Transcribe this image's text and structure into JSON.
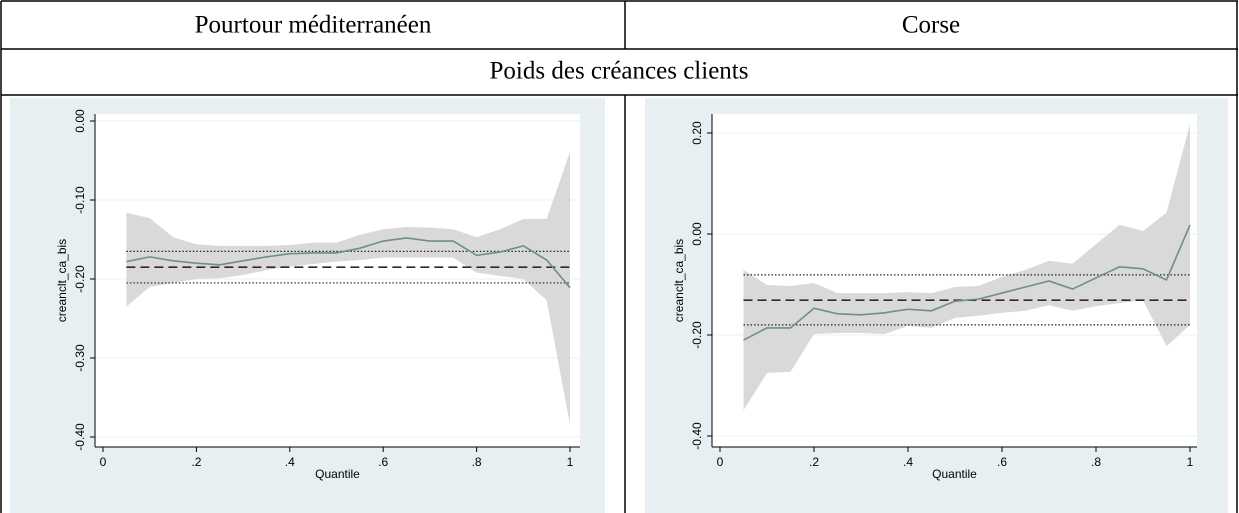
{
  "table": {
    "rows": [
      [
        "Pourtour méditerranéen",
        "Corse"
      ],
      [
        "Poids des créances clients"
      ]
    ]
  },
  "charts": [
    {
      "type": "line",
      "xlabel": "Quantile",
      "ylabel": "creanclt_ca_bis",
      "x": [
        0.05,
        0.1,
        0.15,
        0.2,
        0.25,
        0.3,
        0.35,
        0.4,
        0.45,
        0.5,
        0.55,
        0.6,
        0.65,
        0.7,
        0.75,
        0.8,
        0.85,
        0.9,
        0.95,
        1
      ],
      "values": [
        -0.178,
        -0.172,
        -0.177,
        -0.18,
        -0.182,
        -0.177,
        -0.172,
        -0.168,
        -0.167,
        -0.167,
        -0.161,
        -0.152,
        -0.148,
        -0.152,
        -0.152,
        -0.17,
        -0.166,
        -0.158,
        -0.176,
        -0.211
      ],
      "upper": [
        -0.116,
        -0.123,
        -0.147,
        -0.156,
        -0.158,
        -0.158,
        -0.158,
        -0.157,
        -0.154,
        -0.154,
        -0.144,
        -0.137,
        -0.134,
        -0.135,
        -0.137,
        -0.147,
        -0.137,
        -0.124,
        -0.124,
        -0.039
      ],
      "lower": [
        -0.235,
        -0.21,
        -0.205,
        -0.2,
        -0.199,
        -0.195,
        -0.189,
        -0.184,
        -0.181,
        -0.178,
        -0.176,
        -0.173,
        -0.173,
        -0.173,
        -0.173,
        -0.192,
        -0.196,
        -0.2,
        -0.227,
        -0.384
      ],
      "reference": -0.185,
      "reference_band": [
        -0.205,
        -0.165
      ],
      "color": "#6f8f82",
      "band_color": "#d9d9d9",
      "xlim": [
        0,
        1
      ],
      "xticks": [
        0,
        {
          "value": 0.2,
          "label": ".2"
        },
        {
          "value": 0.4,
          "label": ".4"
        },
        {
          "value": 0.6,
          "label": ".6"
        },
        {
          "value": 0.8,
          "label": ".8"
        },
        1
      ],
      "ylim": [
        -0.4,
        0
      ],
      "yticks": [
        {
          "value": -0.4,
          "label": "-0.40"
        },
        {
          "value": -0.3,
          "label": "-0.30"
        },
        {
          "value": -0.2,
          "label": "-0.20"
        },
        {
          "value": -0.1,
          "label": "-0.10"
        },
        {
          "value": 0,
          "label": "0.00"
        }
      ],
      "grid": true
    },
    {
      "type": "line",
      "xlabel": "Quantile",
      "ylabel": "creanclt_ca_bis",
      "x": [
        0.05,
        0.1,
        0.15,
        0.2,
        0.25,
        0.3,
        0.35,
        0.4,
        0.45,
        0.5,
        0.55,
        0.6,
        0.65,
        0.7,
        0.75,
        0.8,
        0.85,
        0.9,
        0.95,
        1
      ],
      "values": [
        -0.21,
        -0.186,
        -0.186,
        -0.147,
        -0.158,
        -0.16,
        -0.156,
        -0.149,
        -0.152,
        -0.133,
        -0.129,
        -0.117,
        -0.105,
        -0.093,
        -0.109,
        -0.087,
        -0.065,
        -0.069,
        -0.091,
        0.018
      ],
      "upper": [
        -0.071,
        -0.101,
        -0.103,
        -0.097,
        -0.117,
        -0.117,
        -0.117,
        -0.115,
        -0.117,
        -0.105,
        -0.103,
        -0.085,
        -0.071,
        -0.053,
        -0.059,
        -0.02,
        0.018,
        0.006,
        0.042,
        0.218
      ],
      "lower": [
        -0.349,
        -0.275,
        -0.273,
        -0.198,
        -0.196,
        -0.196,
        -0.198,
        -0.182,
        -0.186,
        -0.166,
        -0.162,
        -0.156,
        -0.152,
        -0.141,
        -0.152,
        -0.143,
        -0.137,
        -0.131,
        -0.222,
        -0.18
      ],
      "reference": -0.131,
      "reference_band": [
        -0.18,
        -0.081
      ],
      "color": "#6f8f82",
      "band_color": "#d9d9d9",
      "xlim": [
        0,
        1
      ],
      "xticks": [
        0,
        {
          "value": 0.2,
          "label": ".2"
        },
        {
          "value": 0.4,
          "label": ".4"
        },
        {
          "value": 0.6,
          "label": ".6"
        },
        {
          "value": 0.8,
          "label": ".8"
        },
        1
      ],
      "ylim": [
        -0.4,
        0.2
      ],
      "yticks": [
        {
          "value": -0.4,
          "label": "-0.40"
        },
        {
          "value": -0.2,
          "label": "-0.20"
        },
        {
          "value": 0,
          "label": "0.00"
        },
        {
          "value": 0.2,
          "label": "0.20"
        }
      ],
      "grid": true
    }
  ]
}
